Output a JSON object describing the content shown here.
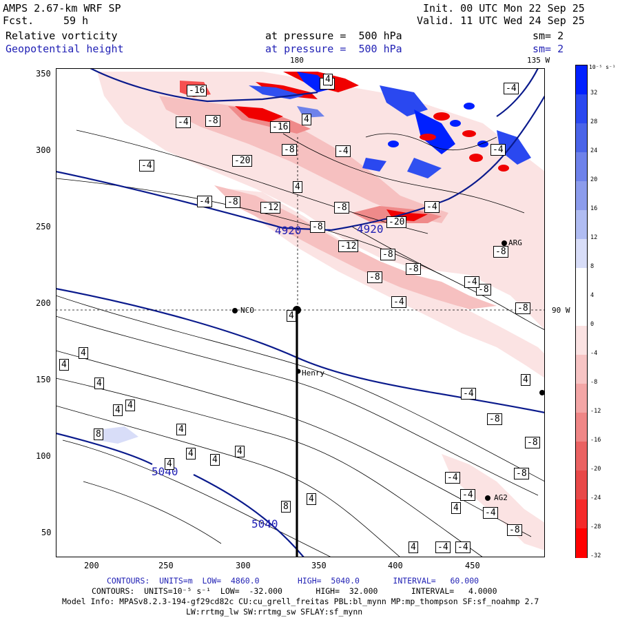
{
  "header": {
    "model": "AMPS 2.67-km WRF SP",
    "fcst_label": "Fcst.",
    "fcst_value": "59 h",
    "init": "Init. 00 UTC Mon 22 Sep 25",
    "valid": "Valid. 11 UTC Wed 24 Sep 25",
    "field1": "Relative vorticity",
    "field2": "Geopotential height",
    "level1": "at pressure =  500 hPa",
    "level2": "at pressure =  500 hPa",
    "sm1": "sm= 2",
    "sm2": "sm= 2"
  },
  "map_labels": {
    "lon_180": "180",
    "lon_135w": "135 W",
    "lon_90w": "90 W",
    "stations": [
      "NCO",
      "Henry",
      "AG2",
      "ARG"
    ]
  },
  "axes": {
    "x_ticks": [
      "200",
      "250",
      "300",
      "350",
      "400",
      "450"
    ],
    "y_ticks": [
      "350",
      "300",
      "250",
      "200",
      "150",
      "100",
      "50"
    ]
  },
  "colorbar": {
    "unit": "10⁻⁵ s⁻¹",
    "labels": [
      "32",
      "28",
      "24",
      "20",
      "16",
      "12",
      "8",
      "4",
      "0",
      "-4",
      "-8",
      "-12",
      "-16",
      "-20",
      "-24",
      "-28",
      "-32"
    ],
    "colors": [
      "#0020ff",
      "#2a48f0",
      "#4a64e8",
      "#6e82ea",
      "#8c9cec",
      "#b0bcf2",
      "#d8ddf8",
      "#ffffff",
      "#ffffff",
      "#fbe2e2",
      "#f7c4c4",
      "#f3a6a6",
      "#ef8686",
      "#ea6262",
      "#e84848",
      "#f52a2a",
      "#ff0000"
    ]
  },
  "contour_labels": {
    "height": [
      "4920",
      "4920",
      "5040",
      "5040"
    ],
    "vort": [
      "-16",
      "-4",
      "4",
      "4",
      "-4",
      "-8",
      "-16",
      "-4",
      "-8",
      "-20",
      "-4",
      "-4",
      "-4",
      "4",
      "-4",
      "-8",
      "-12",
      "-8",
      "-20",
      "-4",
      "-8",
      "-12",
      "-8",
      "-8",
      "-8",
      "-4",
      "-8",
      "-8",
      "-8",
      "4",
      "4",
      "4",
      "4",
      "4",
      "4",
      "8",
      "4",
      "4",
      "4",
      "4",
      "4",
      "8",
      "4",
      "-4",
      "-4",
      "-4",
      "-4",
      "-8",
      "-8",
      "-4",
      "4",
      "4",
      "4",
      "4",
      "-4",
      "-8",
      "4",
      "-4",
      "-8"
    ]
  },
  "footer": {
    "line1": "CONTOURS:  UNITS=m  LOW=  4860.0        HIGH=  5040.0       INTERVAL=   60.000",
    "line2": "CONTOURS:  UNITS=10⁻⁵ s⁻¹  LOW=  -32.000       HIGH=  32.000       INTERVAL=   4.0000",
    "line3": "Model Info: MPASv8.2.3-194-gf29cd82c CU:cu_grell_freitas PBL:bl_mynn MP:mp_thompson SF:sf_noahmp 2.7",
    "line4": "LW:rrtmg_lw SW:rrtmg_sw SFLAY:sf_mynn"
  }
}
